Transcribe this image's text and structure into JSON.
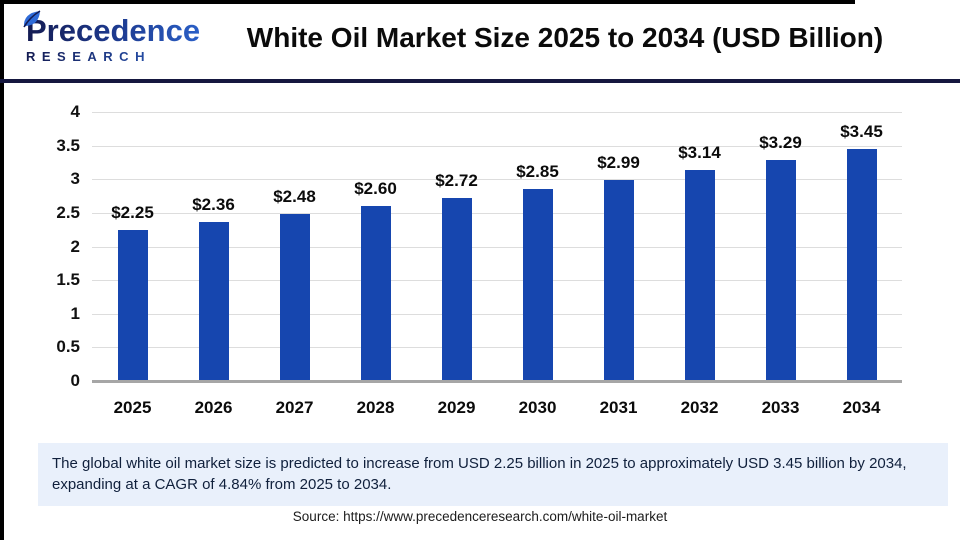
{
  "header": {
    "logo": {
      "line1": "Precedence",
      "line2": "RESEARCH"
    },
    "title": "White Oil Market Size 2025 to 2034 (USD Billion)"
  },
  "chart_data": {
    "type": "bar",
    "title": "White Oil Market Size 2025 to 2034 (USD Billion)",
    "categories": [
      "2025",
      "2026",
      "2027",
      "2028",
      "2029",
      "2030",
      "2031",
      "2032",
      "2033",
      "2034"
    ],
    "values": [
      2.25,
      2.36,
      2.48,
      2.6,
      2.72,
      2.85,
      2.99,
      3.14,
      3.29,
      3.45
    ],
    "value_labels": [
      "$2.25",
      "$2.36",
      "$2.48",
      "$2.60",
      "$2.72",
      "$2.85",
      "$2.99",
      "$3.14",
      "$3.29",
      "$3.45"
    ],
    "unit": "USD Billion",
    "xlabel": "",
    "ylabel": "",
    "ylim": [
      0,
      4
    ],
    "yticks": [
      0,
      0.5,
      1,
      1.5,
      2,
      2.5,
      3,
      3.5,
      4
    ],
    "ytick_labels": [
      "0",
      "0.5",
      "1",
      "1.5",
      "2",
      "2.5",
      "3",
      "3.5",
      "4"
    ],
    "grid": true,
    "legend_position": "none",
    "bar_color": "#1646af"
  },
  "footer": {
    "note": "The global white oil market size is predicted to increase from USD 2.25 billion in 2025 to approximately USD 3.45 billion by 2034, expanding at a CAGR of 4.84% from 2025 to 2034.",
    "source": "Source: https://www.precedenceresearch.com/white-oil-market"
  },
  "colors": {
    "bar": "#1646af",
    "header_divider": "#15173f",
    "gridline": "#dddddd",
    "axis_line": "#a6a6a6",
    "note_background": "#e9f0fb",
    "logo_dark": "#141b52",
    "logo_light": "#2f6bd8"
  }
}
